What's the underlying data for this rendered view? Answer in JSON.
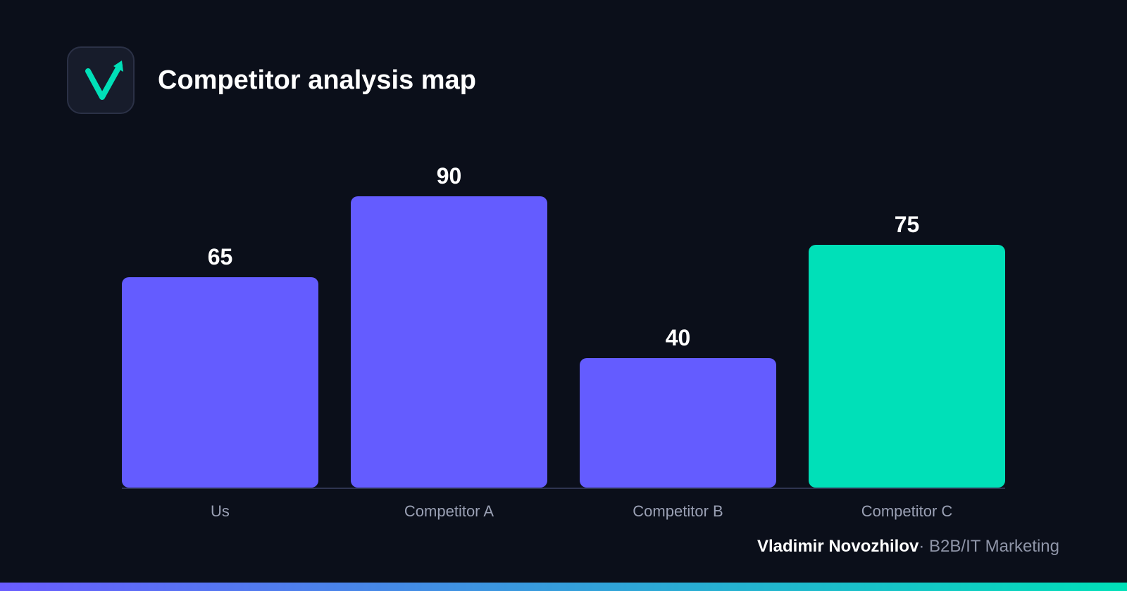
{
  "header": {
    "title": "Competitor analysis map",
    "logo_icon": "check-arrow-icon"
  },
  "colors": {
    "background": "#0b0f1a",
    "bar_default": "#645cff",
    "bar_highlight": "#00e0b8",
    "axis_line": "#2e3450",
    "category_text": "#9aa0b4",
    "gradient_start": "#6a5cff",
    "gradient_end": "#00e0b8"
  },
  "chart_data": {
    "type": "bar",
    "categories": [
      "Us",
      "Competitor A",
      "Competitor B",
      "Competitor C"
    ],
    "values": [
      65,
      90,
      40,
      75
    ],
    "highlight": [
      "Competitor C"
    ],
    "title": "",
    "xlabel": "",
    "ylabel": "",
    "ylim": [
      0,
      100
    ],
    "grid": false,
    "legend": "none",
    "data_labels": true
  },
  "footer": {
    "author": "Vladimir Novozhilov",
    "separator": "·",
    "role": "B2B/IT Marketing"
  }
}
